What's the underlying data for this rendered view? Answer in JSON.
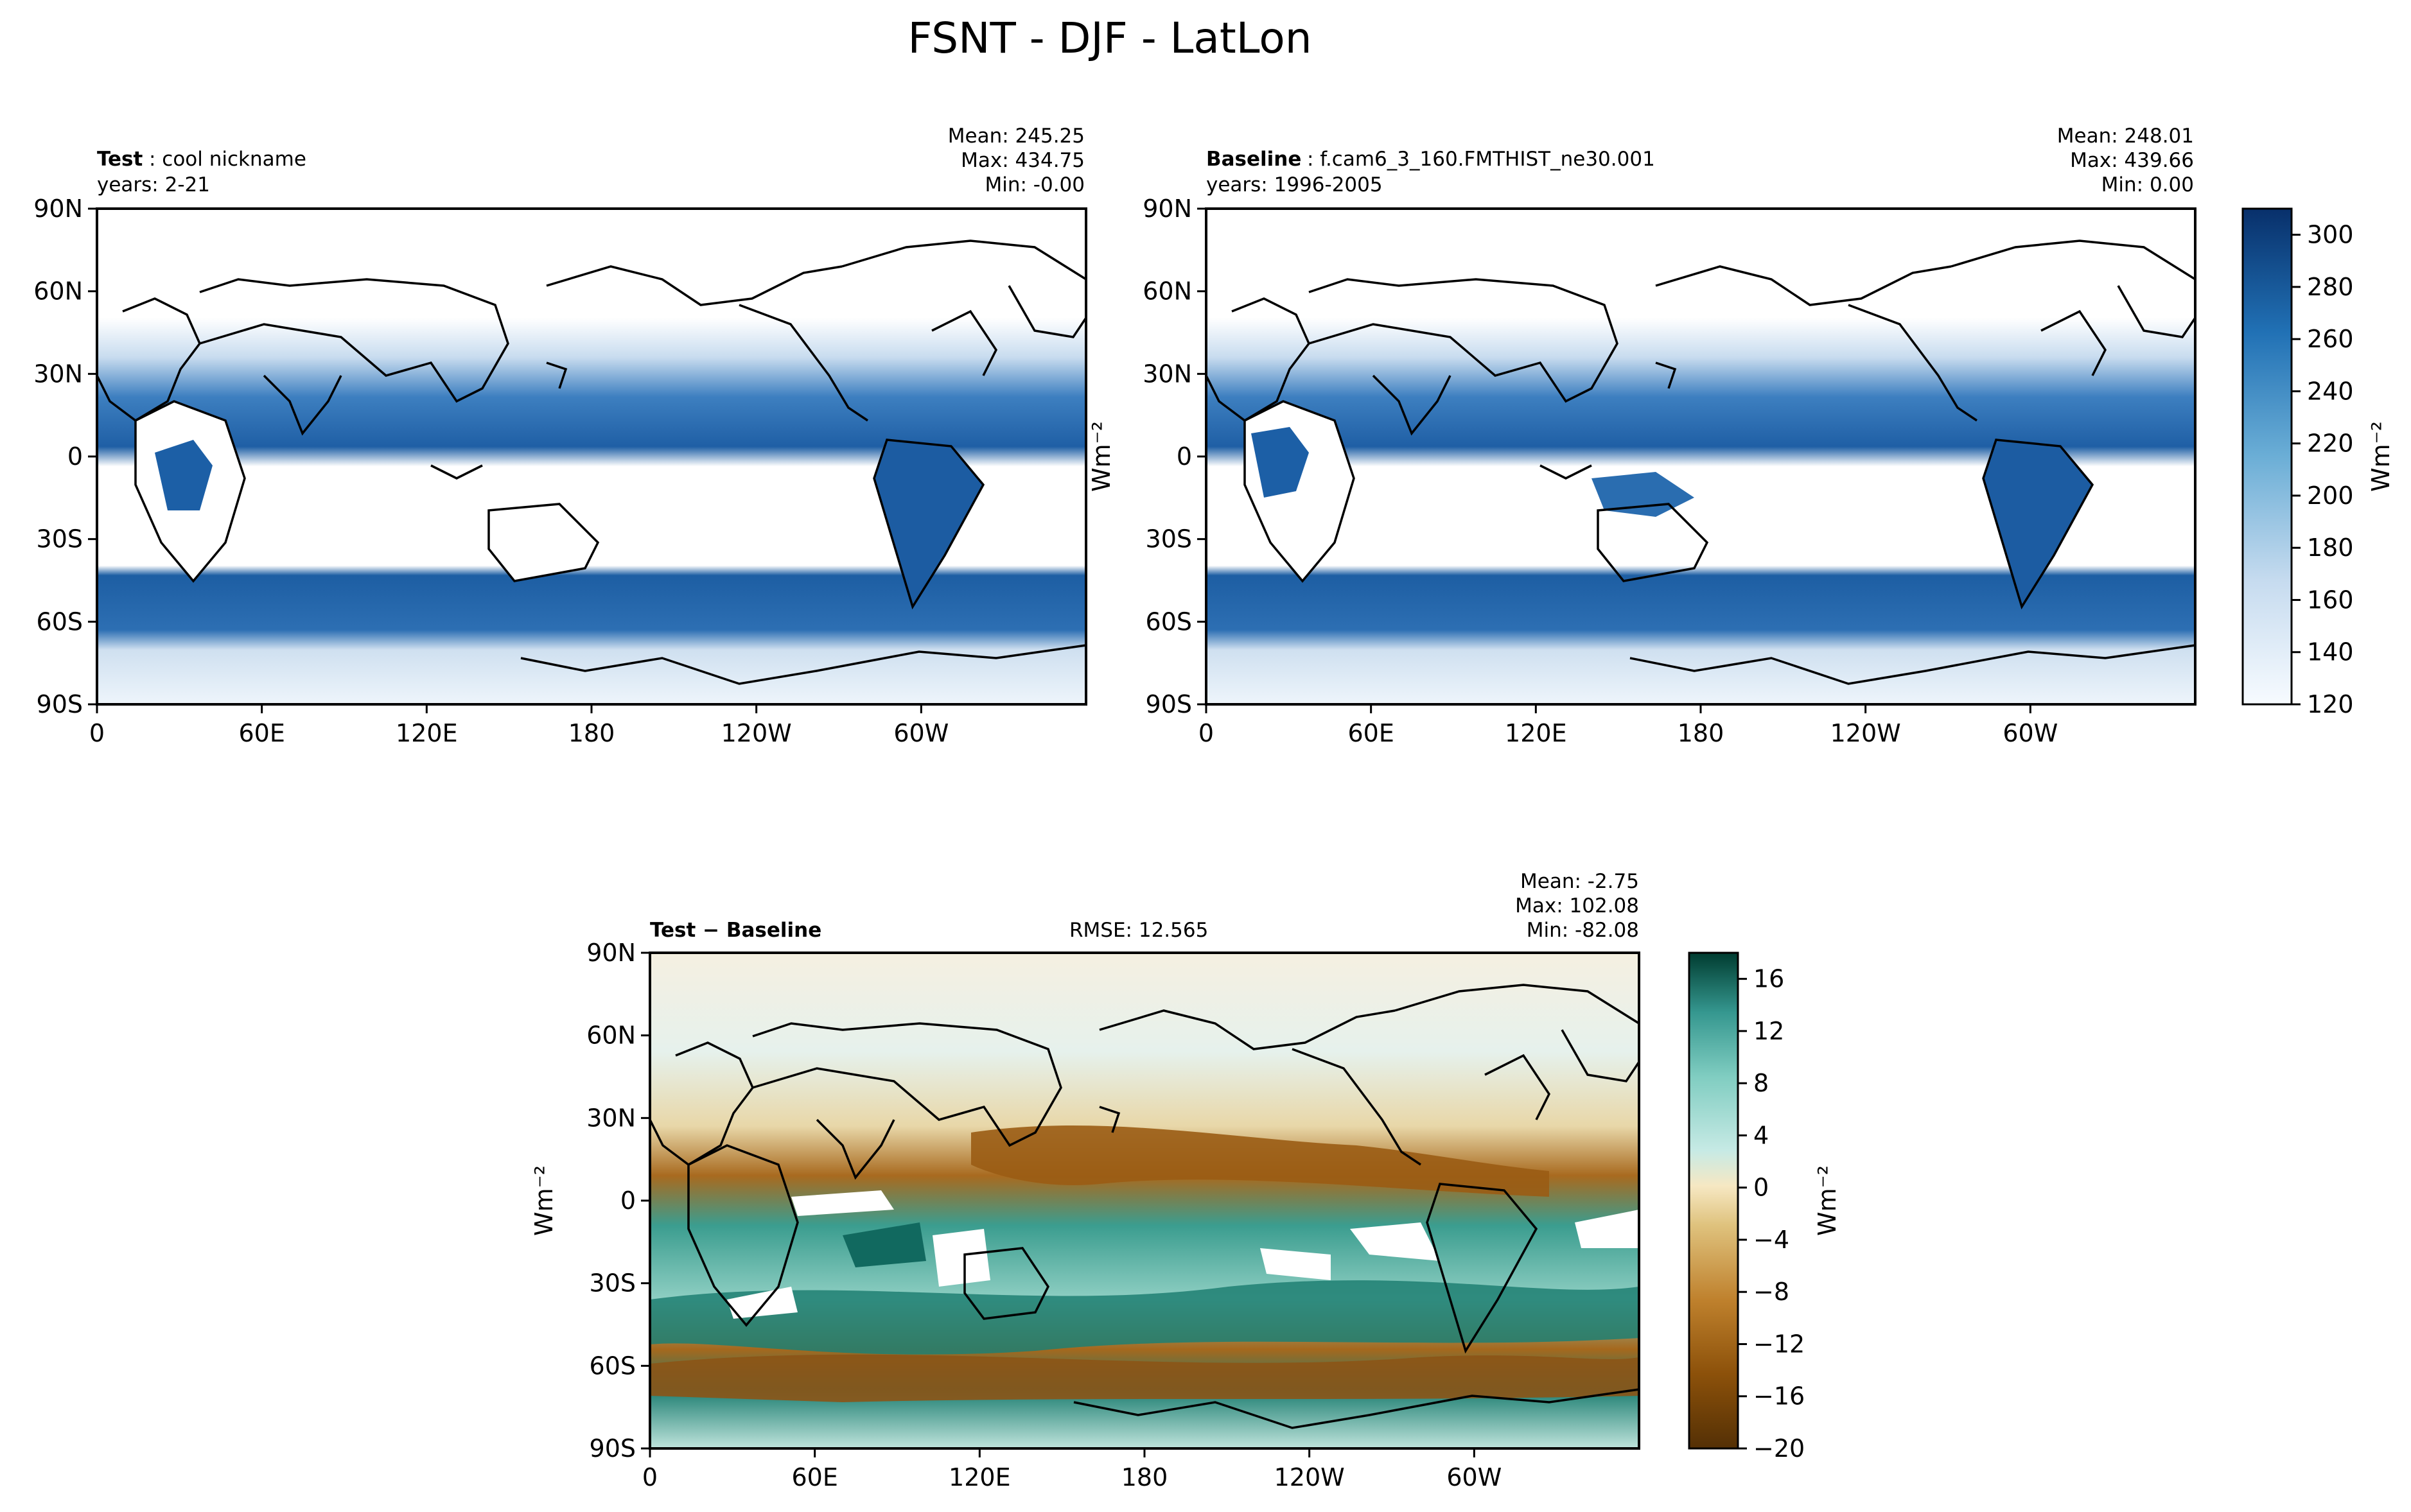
{
  "figure": {
    "title": "FSNT - DJF - LatLon"
  },
  "colors": {
    "ocean_blue_deep": "#0b4a8f",
    "ocean_blue_mid": "#2f74b5",
    "ocean_blue_light": "#a9cbe5",
    "diff_brown_deep": "#8c510a",
    "diff_brown_light": "#dfc27d",
    "diff_teal_deep": "#01665e",
    "diff_teal_light": "#80cdc1",
    "neutral": "#f5f1e4"
  },
  "chart_data": [
    {
      "type": "heatmap",
      "panel": "test",
      "label_bold": "Test",
      "label_rest": ": cool nickname",
      "years": "years: 2-21",
      "stats": {
        "mean": "Mean: 245.25",
        "max": "Max: 434.75",
        "min": "Min: -0.00"
      },
      "x_ticks": [
        "0",
        "60E",
        "120E",
        "180",
        "120W",
        "60W"
      ],
      "y_ticks": [
        "90N",
        "60N",
        "30N",
        "0",
        "30S",
        "60S",
        "90S"
      ],
      "colormap": "Blues"
    },
    {
      "type": "heatmap",
      "panel": "baseline",
      "label_bold": "Baseline",
      "label_rest": ": f.cam6_3_160.FMTHIST_ne30.001",
      "years": "years: 1996-2005",
      "stats": {
        "mean": "Mean: 248.01",
        "max": "Max: 439.66",
        "min": "Min:  0.00"
      },
      "x_ticks": [
        "0",
        "60E",
        "120E",
        "180",
        "120W",
        "60W"
      ],
      "y_ticks": [
        "90N",
        "60N",
        "30N",
        "0",
        "30S",
        "60S",
        "90S"
      ],
      "colorbar": {
        "ticks": [
          "120",
          "140",
          "160",
          "180",
          "200",
          "220",
          "240",
          "260",
          "280",
          "300"
        ],
        "range": [
          120,
          310
        ],
        "unit": "Wm⁻²"
      },
      "colormap": "Blues"
    },
    {
      "type": "heatmap",
      "panel": "difference",
      "label": "Test − Baseline",
      "rmse": "RMSE: 12.565",
      "stats": {
        "mean": "Mean: -2.75",
        "max": "Max: 102.08",
        "min": "Min: -82.08"
      },
      "x_ticks": [
        "0",
        "60E",
        "120E",
        "180",
        "120W",
        "60W"
      ],
      "y_ticks": [
        "90N",
        "60N",
        "30N",
        "0",
        "30S",
        "60S",
        "90S"
      ],
      "colorbar": {
        "ticks": [
          "16",
          "12",
          "8",
          "4",
          "0",
          "−4",
          "−8",
          "−12",
          "−16",
          "−20"
        ],
        "range": [
          -20,
          18
        ],
        "unit": "Wm⁻²"
      },
      "colormap": "BrBG"
    }
  ]
}
